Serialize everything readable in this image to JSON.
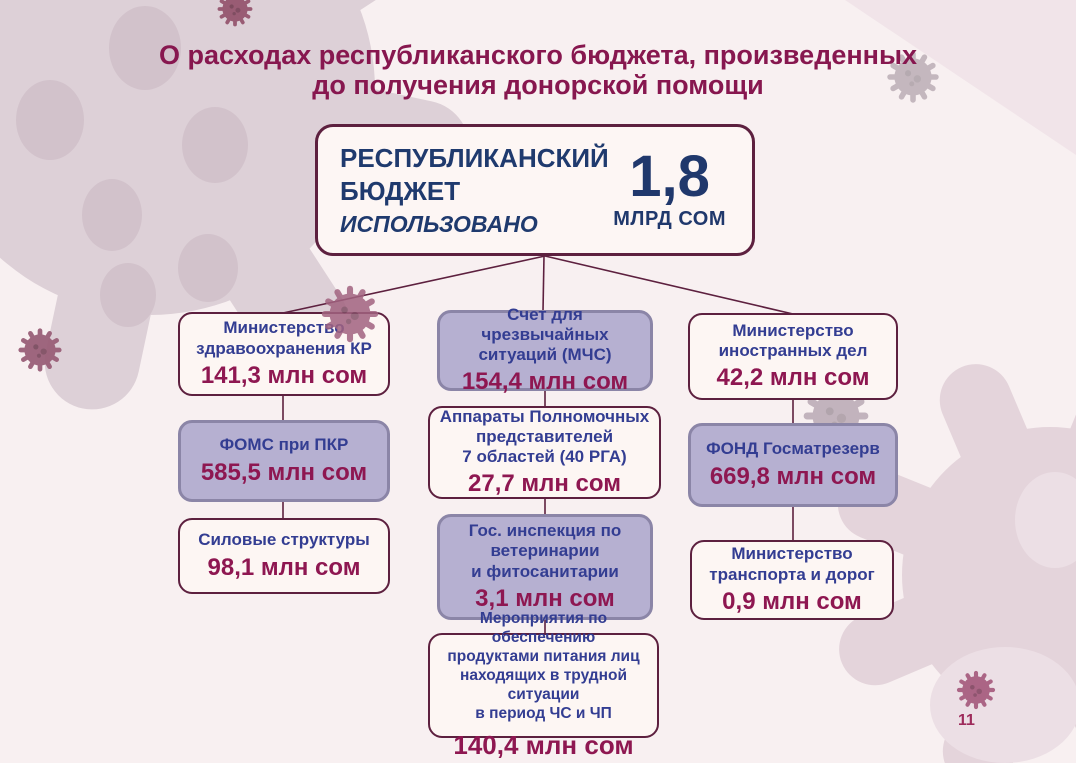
{
  "title": {
    "line1": "О расходах республиканского бюджета, произведенных",
    "line2": "до получения донорской помощи"
  },
  "root": {
    "name_line1": "РЕСПУБЛИКАНСКИЙ",
    "name_line2": "БЮДЖЕТ",
    "subtitle": "ИСПОЛЬЗОВАНО",
    "amount": "1,8",
    "unit": "МЛРД СОМ"
  },
  "columns": [
    {
      "boxes": [
        {
          "id": "l1",
          "lines": [
            "Министерство",
            "здравоохранения КР"
          ],
          "amount": "141,3 млн сом"
        },
        {
          "id": "l2",
          "lines": [
            "ФОМС при ПКР"
          ],
          "amount": "585,5 млн сом"
        },
        {
          "id": "l3",
          "lines": [
            "Силовые структуры"
          ],
          "amount": "98,1 млн сом"
        }
      ]
    },
    {
      "boxes": [
        {
          "id": "m1",
          "lines": [
            "Счет для чрезвычайных",
            "ситуаций (МЧС)"
          ],
          "amount": "154,4 млн сом"
        },
        {
          "id": "m2",
          "lines": [
            "Аппараты Полномочных",
            "представителей",
            "7 областей (40 РГА)"
          ],
          "amount": "27,7 млн сом"
        },
        {
          "id": "m3",
          "lines": [
            "Гос. инспекция по",
            "ветеринарии",
            "и фитосанитарии"
          ],
          "amount": "3,1 млн сом"
        },
        {
          "id": "m4",
          "lines": [
            "Мероприятия по обеспечению",
            "продуктами питания лиц",
            "находящих в трудной ситуации",
            "в период ЧС и ЧП"
          ],
          "amount": "140,4 млн сом"
        }
      ]
    },
    {
      "boxes": [
        {
          "id": "r1",
          "lines": [
            "Министерство",
            "иностранных дел"
          ],
          "amount": "42,2 млн сом"
        },
        {
          "id": "r2",
          "lines": [
            "ФОНД Госматрезерв"
          ],
          "amount": "669,8 млн сом"
        },
        {
          "id": "r3",
          "lines": [
            "Министерство",
            "транспорта и дорог"
          ],
          "amount": "0,9 млн сом"
        }
      ]
    }
  ],
  "page_number": "11",
  "colors": {
    "background": "#f8f0f1",
    "title_text": "#87174f",
    "maroon_border": "#5d203f",
    "amount_text": "#8e1751",
    "label_blue": "#333d92",
    "root_navy": "#1f3a6e",
    "lavender_fill": "#b6b0d1",
    "lavender_border": "#8b85a7",
    "cream_fill": "#fdf6f3",
    "decor_blob": "#ddd0d7"
  },
  "icons": {
    "decoration": "coronavirus-icon"
  }
}
